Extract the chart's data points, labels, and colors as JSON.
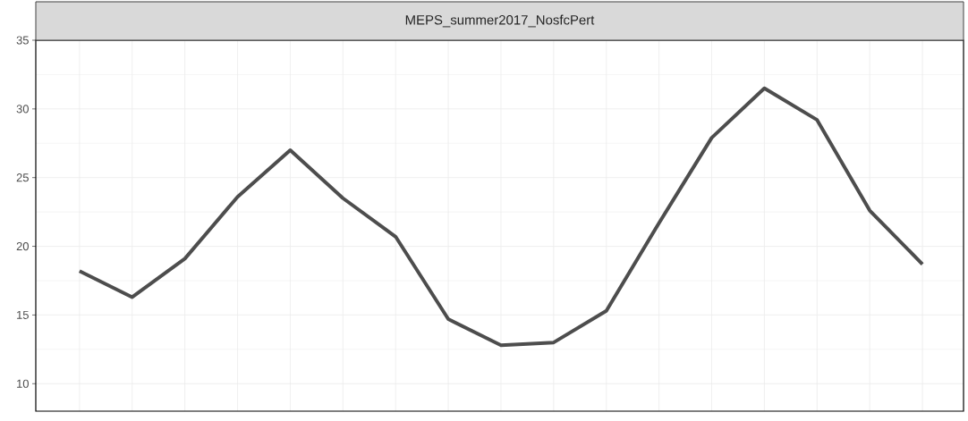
{
  "chart_data": {
    "type": "line",
    "title": "MEPS_summer2017_NosfcPert",
    "categories": [
      null,
      null,
      null,
      null,
      null,
      null,
      null,
      null,
      null,
      null,
      null,
      null,
      null,
      null,
      null,
      null,
      null
    ],
    "values": [
      18.2,
      16.3,
      19.1,
      23.6,
      27.0,
      23.5,
      20.7,
      14.7,
      12.8,
      13.0,
      15.3,
      21.7,
      27.9,
      31.5,
      29.2,
      22.6,
      18.7
    ],
    "color": "#4d4d4d",
    "ylim": [
      8,
      35
    ],
    "yticks": [
      10,
      15,
      20,
      25,
      30,
      35
    ],
    "grid": true,
    "line_style": "solid",
    "marker": "none"
  }
}
